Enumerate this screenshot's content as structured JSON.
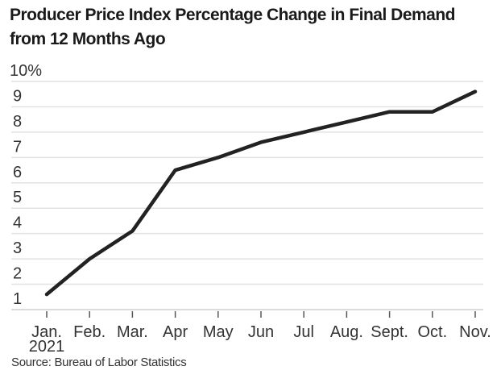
{
  "chart_data": {
    "type": "line",
    "title": "Producer Price Index Percentage Change in Final Demand from 12 Months Ago",
    "categories": [
      "Jan.",
      "Feb.",
      "Mar.",
      "Apr",
      "May",
      "Jun",
      "Jul",
      "Aug.",
      "Sept.",
      "Oct.",
      "Nov."
    ],
    "category_sublabel": "2021",
    "values": [
      1.6,
      3.0,
      4.1,
      6.5,
      7.0,
      7.6,
      8.0,
      8.4,
      8.8,
      8.8,
      9.6
    ],
    "y_ticks": [
      "1",
      "2",
      "3",
      "4",
      "5",
      "6",
      "7",
      "8",
      "9",
      "10%"
    ],
    "ylim": [
      1,
      10
    ],
    "grid": true,
    "line_color": "#222222",
    "grid_color": "#e2e2e2",
    "source": "Source: Bureau of Labor Statistics"
  }
}
